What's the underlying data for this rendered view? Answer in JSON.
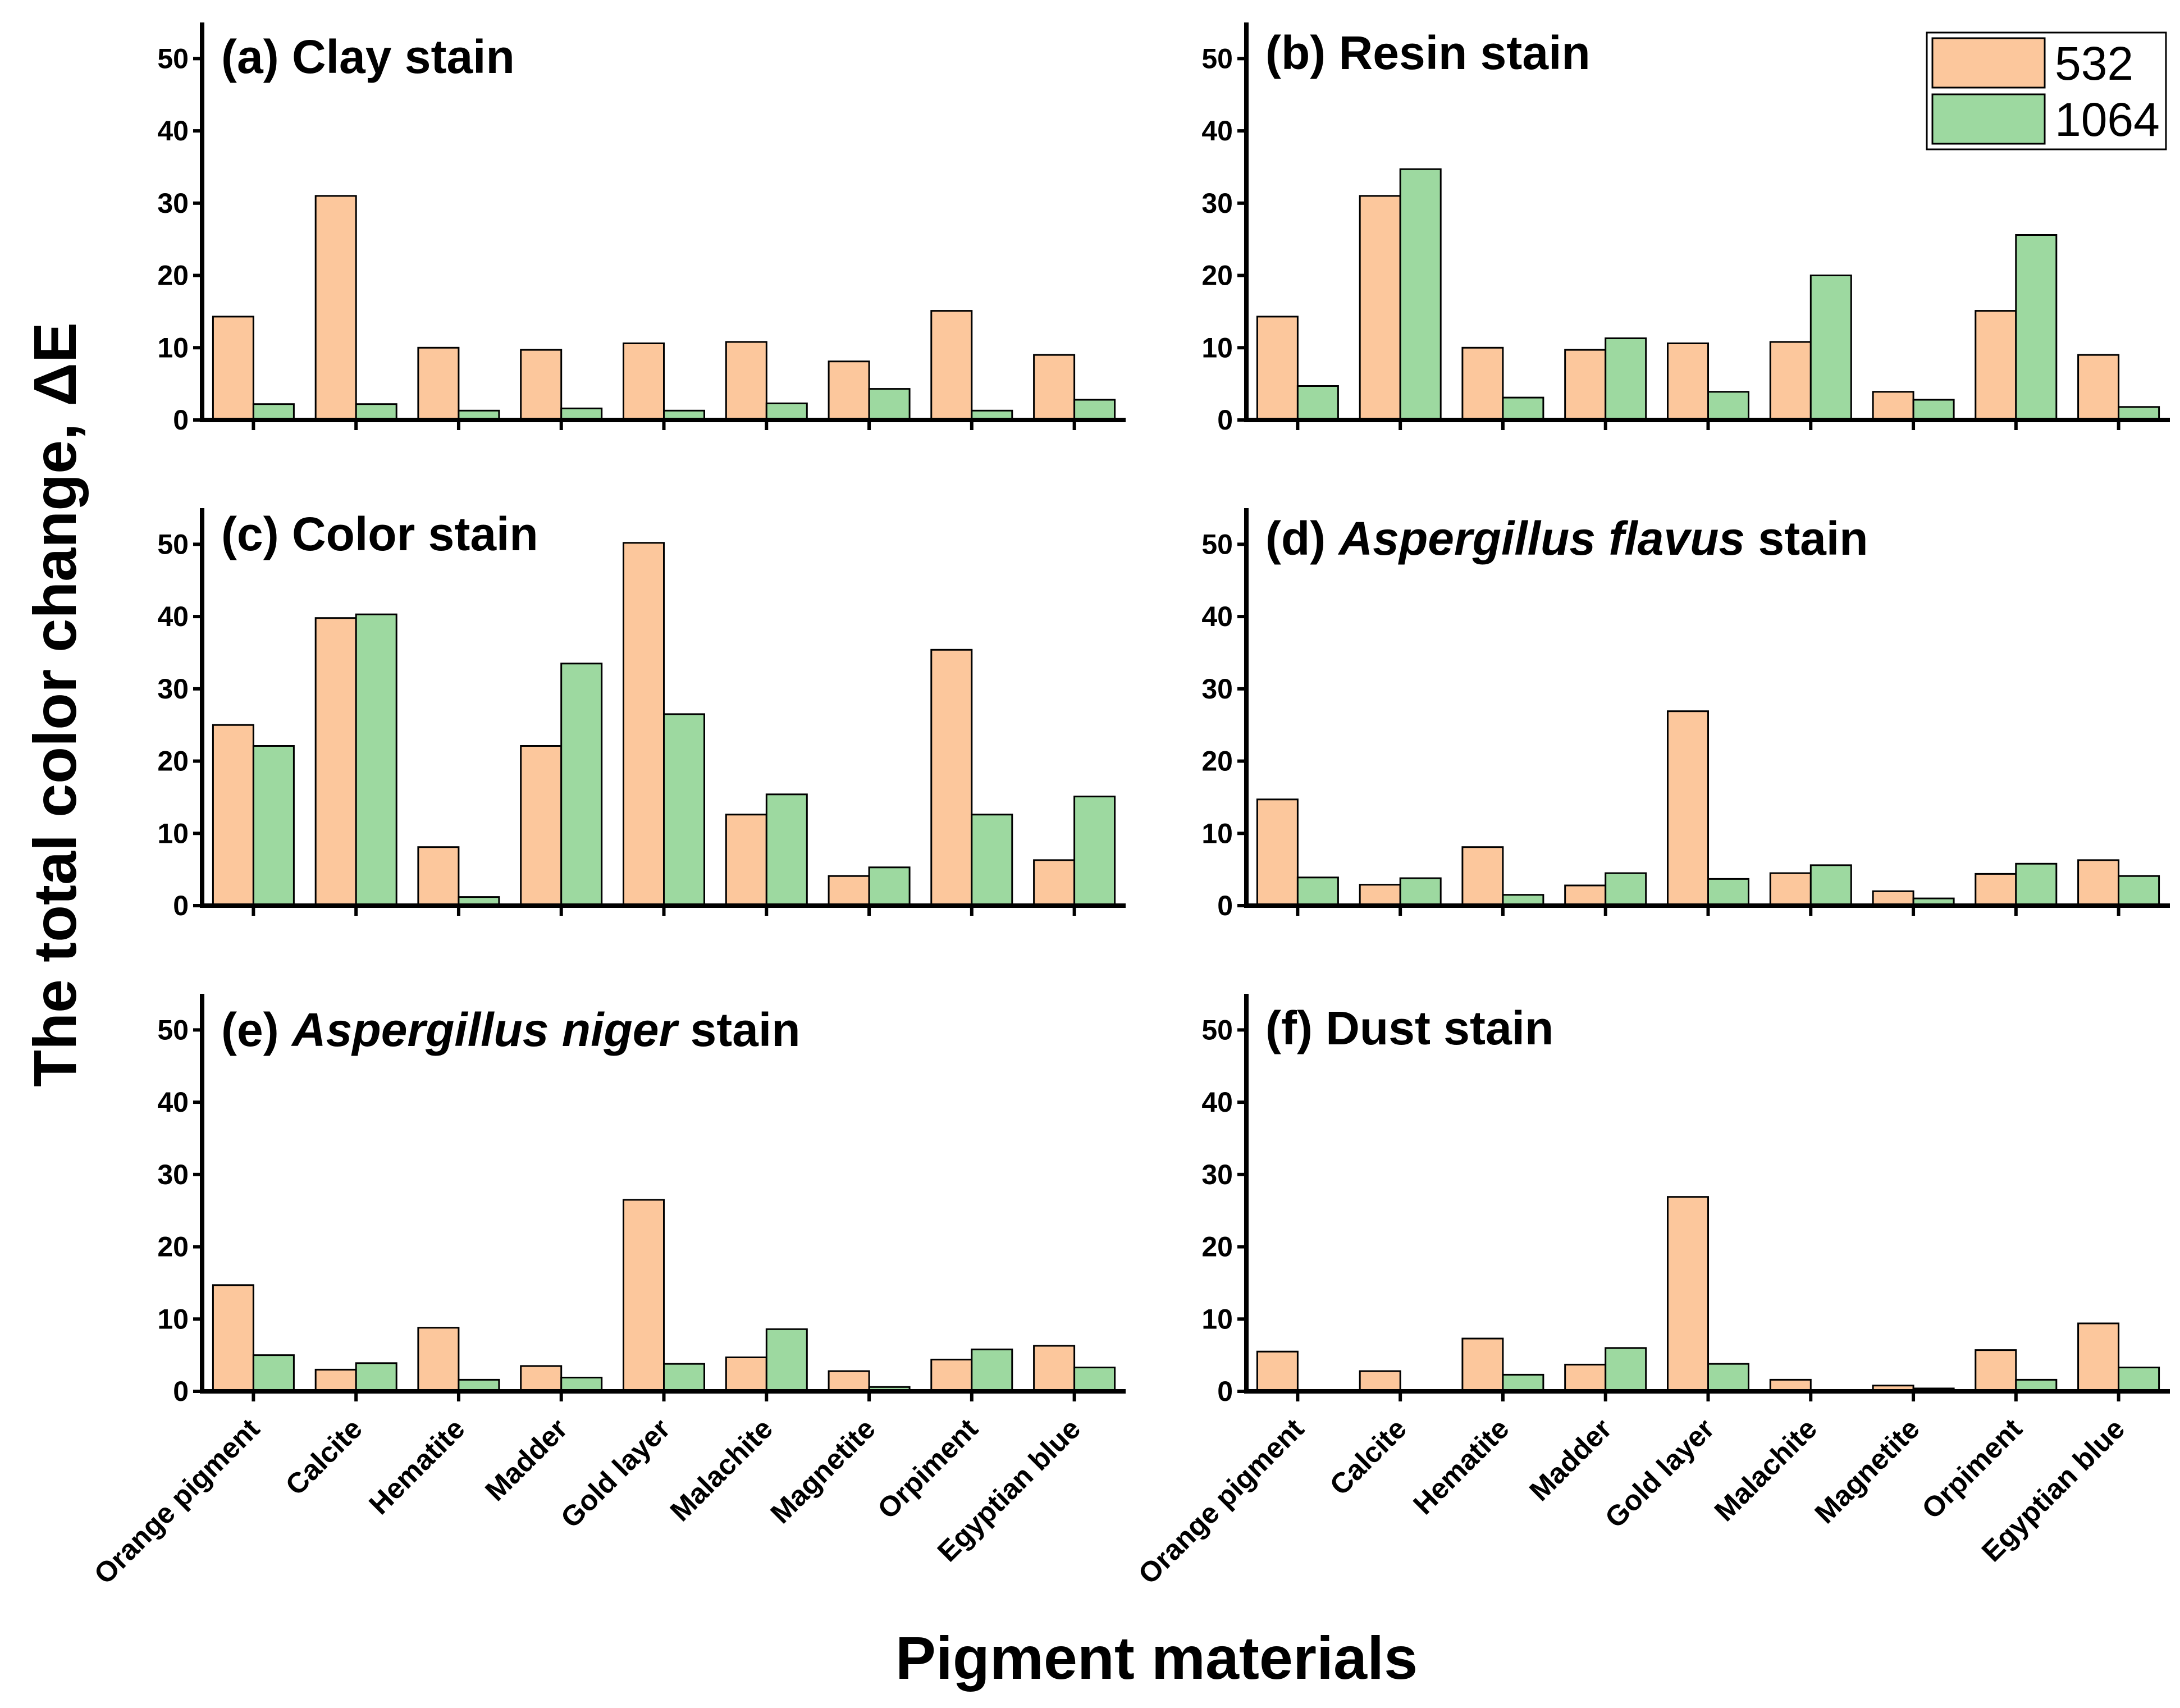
{
  "chart_data": {
    "type": "bar",
    "ylabel": "The total color change, ΔE",
    "xlabel": "Pigment materials",
    "categories": [
      "Orange pigment",
      "Calcite",
      "Hematite",
      "Madder",
      "Gold layer",
      "Malachite",
      "Magnetite",
      "Orpiment",
      "Egyptian blue"
    ],
    "ylim": [
      0,
      55
    ],
    "yticks": [
      0,
      10,
      20,
      30,
      40,
      50
    ],
    "legend": {
      "position": "top-right",
      "entries": [
        {
          "name": "532",
          "color": "#fcc79c"
        },
        {
          "name": "1064",
          "color": "#9dd9a0"
        }
      ]
    },
    "panels": [
      {
        "id": "a",
        "title_parts": [
          {
            "text": "(a) Clay stain",
            "italic": false
          }
        ],
        "series": [
          {
            "name": "532",
            "values": [
              14.3,
              31.0,
              10.0,
              9.7,
              10.6,
              10.8,
              8.1,
              15.1,
              9.0
            ]
          },
          {
            "name": "1064",
            "values": [
              2.2,
              2.2,
              1.3,
              1.6,
              1.3,
              2.3,
              4.3,
              1.3,
              2.8
            ]
          }
        ]
      },
      {
        "id": "b",
        "title_parts": [
          {
            "text": "(b) Resin stain",
            "italic": false
          }
        ],
        "series": [
          {
            "name": "532",
            "values": [
              14.3,
              31.0,
              10.0,
              9.7,
              10.6,
              10.8,
              3.9,
              15.1,
              9.0
            ]
          },
          {
            "name": "1064",
            "values": [
              4.7,
              34.7,
              3.1,
              11.3,
              3.9,
              20.0,
              2.8,
              25.6,
              1.8
            ]
          }
        ]
      },
      {
        "id": "c",
        "title_parts": [
          {
            "text": "(c) Color stain",
            "italic": false
          }
        ],
        "series": [
          {
            "name": "532",
            "values": [
              25.0,
              39.8,
              8.1,
              22.1,
              50.2,
              12.6,
              4.1,
              35.4,
              6.3
            ]
          },
          {
            "name": "1064",
            "values": [
              22.1,
              40.3,
              1.2,
              33.5,
              26.5,
              15.4,
              5.3,
              12.6,
              15.1
            ]
          }
        ]
      },
      {
        "id": "d",
        "title_parts": [
          {
            "text": "(d) ",
            "italic": false
          },
          {
            "text": "Aspergillus flavus",
            "italic": true
          },
          {
            "text": " stain",
            "italic": false
          }
        ],
        "series": [
          {
            "name": "532",
            "values": [
              14.7,
              2.9,
              8.1,
              2.8,
              26.9,
              4.5,
              2.0,
              4.4,
              6.3
            ]
          },
          {
            "name": "1064",
            "values": [
              3.9,
              3.8,
              1.5,
              4.5,
              3.7,
              5.6,
              1.0,
              5.8,
              4.1
            ]
          }
        ]
      },
      {
        "id": "e",
        "title_parts": [
          {
            "text": "(e) ",
            "italic": false
          },
          {
            "text": "Aspergillus niger",
            "italic": true
          },
          {
            "text": " stain",
            "italic": false
          }
        ],
        "series": [
          {
            "name": "532",
            "values": [
              14.7,
              3.0,
              8.8,
              3.5,
              26.5,
              4.7,
              2.8,
              4.4,
              6.3
            ]
          },
          {
            "name": "1064",
            "values": [
              5.0,
              3.9,
              1.6,
              1.9,
              3.8,
              8.6,
              0.6,
              5.8,
              3.3
            ]
          }
        ]
      },
      {
        "id": "f",
        "title_parts": [
          {
            "text": "(f) Dust stain",
            "italic": false
          }
        ],
        "series": [
          {
            "name": "532",
            "values": [
              5.5,
              2.8,
              7.3,
              3.7,
              26.9,
              1.6,
              0.8,
              5.7,
              9.4
            ]
          },
          {
            "name": "1064",
            "values": [
              0.0,
              0.0,
              2.3,
              6.0,
              3.8,
              0.0,
              0.4,
              1.6,
              3.3
            ]
          }
        ]
      }
    ]
  }
}
